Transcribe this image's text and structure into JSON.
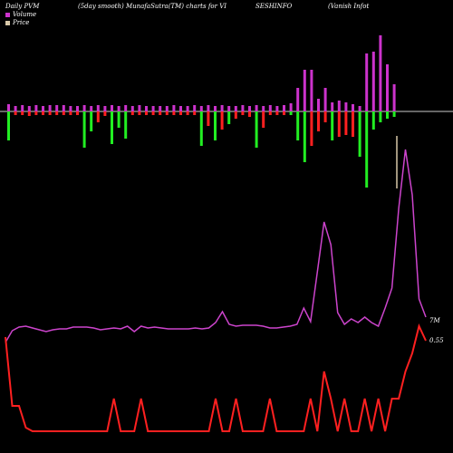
{
  "header": {
    "left": "Daily PVM",
    "center": "(5day smooth) MunafaSutra(TM) charts for VI",
    "symbol": "SESHINFO",
    "company": "(Vanish Infot"
  },
  "legend": [
    {
      "label": "Volume",
      "color": "#cc33cc"
    },
    {
      "label": "Price",
      "color": "#d8c8a8"
    }
  ],
  "right_labels": {
    "upper": "7M",
    "lower": "0.55"
  },
  "colors": {
    "up": "#cc33cc",
    "down": "#ff2020",
    "green": "#22ee22",
    "pvm": "#cc44cc",
    "price": "#ff2020",
    "baseline": "#cccccc"
  },
  "chart_data": {
    "type": "bar",
    "title": "Daily PVM",
    "volume_bars": [
      {
        "up": 8,
        "down": 32,
        "c": "g"
      },
      {
        "up": 6,
        "down": 4,
        "c": "r"
      },
      {
        "up": 7,
        "down": 4,
        "c": "r"
      },
      {
        "up": 6,
        "down": 5,
        "c": "r"
      },
      {
        "up": 7,
        "down": 4,
        "c": "r"
      },
      {
        "up": 6,
        "down": 4,
        "c": "r"
      },
      {
        "up": 7,
        "down": 4,
        "c": "r"
      },
      {
        "up": 7,
        "down": 4,
        "c": "r"
      },
      {
        "up": 7,
        "down": 4,
        "c": "r"
      },
      {
        "up": 6,
        "down": 4,
        "c": "r"
      },
      {
        "up": 6,
        "down": 4,
        "c": "r"
      },
      {
        "up": 7,
        "down": 40,
        "c": "g"
      },
      {
        "up": 6,
        "down": 22,
        "c": "g"
      },
      {
        "up": 7,
        "down": 12,
        "c": "r"
      },
      {
        "up": 6,
        "down": 5,
        "c": "r"
      },
      {
        "up": 7,
        "down": 36,
        "c": "g"
      },
      {
        "up": 6,
        "down": 18,
        "c": "g"
      },
      {
        "up": 7,
        "down": 30,
        "c": "g"
      },
      {
        "up": 6,
        "down": 4,
        "c": "r"
      },
      {
        "up": 7,
        "down": 4,
        "c": "r"
      },
      {
        "up": 6,
        "down": 4,
        "c": "r"
      },
      {
        "up": 6,
        "down": 4,
        "c": "r"
      },
      {
        "up": 6,
        "down": 4,
        "c": "r"
      },
      {
        "up": 6,
        "down": 4,
        "c": "r"
      },
      {
        "up": 7,
        "down": 4,
        "c": "r"
      },
      {
        "up": 6,
        "down": 4,
        "c": "r"
      },
      {
        "up": 6,
        "down": 4,
        "c": "r"
      },
      {
        "up": 7,
        "down": 4,
        "c": "r"
      },
      {
        "up": 6,
        "down": 38,
        "c": "g"
      },
      {
        "up": 7,
        "down": 16,
        "c": "r"
      },
      {
        "up": 6,
        "down": 32,
        "c": "g"
      },
      {
        "up": 7,
        "down": 20,
        "c": "r"
      },
      {
        "up": 6,
        "down": 14,
        "c": "g"
      },
      {
        "up": 6,
        "down": 8,
        "c": "r"
      },
      {
        "up": 7,
        "down": 4,
        "c": "r"
      },
      {
        "up": 6,
        "down": 6,
        "c": "r"
      },
      {
        "up": 7,
        "down": 40,
        "c": "g"
      },
      {
        "up": 6,
        "down": 18,
        "c": "r"
      },
      {
        "up": 7,
        "down": 4,
        "c": "r"
      },
      {
        "up": 6,
        "down": 4,
        "c": "r"
      },
      {
        "up": 7,
        "down": 4,
        "c": "r"
      },
      {
        "up": 9,
        "down": 4,
        "c": "g"
      },
      {
        "up": 26,
        "down": 32,
        "c": "g"
      },
      {
        "up": 46,
        "down": 56,
        "c": "g"
      },
      {
        "up": 46,
        "down": 38,
        "c": "r"
      },
      {
        "up": 14,
        "down": 22,
        "c": "r"
      },
      {
        "up": 26,
        "down": 12,
        "c": "r"
      },
      {
        "up": 10,
        "down": 32,
        "c": "g"
      },
      {
        "up": 12,
        "down": 28,
        "c": "r"
      },
      {
        "up": 10,
        "down": 26,
        "c": "r"
      },
      {
        "up": 8,
        "down": 28,
        "c": "r"
      },
      {
        "up": 6,
        "down": 50,
        "c": "g"
      },
      {
        "up": 64,
        "down": 84,
        "c": "g"
      },
      {
        "up": 66,
        "down": 20,
        "c": "g"
      },
      {
        "up": 84,
        "down": 12,
        "c": "g"
      },
      {
        "up": 52,
        "down": 8,
        "c": "g"
      },
      {
        "up": 30,
        "down": 6,
        "c": "g"
      }
    ],
    "pvm_line": [
      378,
      365,
      361,
      360,
      362,
      364,
      366,
      364,
      363,
      363,
      361,
      361,
      361,
      362,
      364,
      363,
      362,
      363,
      360,
      366,
      360,
      362,
      361,
      362,
      363,
      363,
      363,
      363,
      362,
      363,
      362,
      356,
      344,
      358,
      360,
      359,
      359,
      359,
      360,
      362,
      362,
      361,
      360,
      358,
      340,
      355,
      300,
      245,
      270,
      345,
      358,
      352,
      356,
      350,
      356,
      360,
      340,
      318,
      230,
      165,
      215,
      330,
      350
    ],
    "price_line": [
      372,
      448,
      448,
      472,
      476,
      476,
      476,
      476,
      476,
      476,
      476,
      476,
      476,
      476,
      476,
      476,
      440,
      476,
      476,
      476,
      440,
      476,
      476,
      476,
      476,
      476,
      476,
      476,
      476,
      476,
      476,
      440,
      476,
      476,
      440,
      476,
      476,
      476,
      476,
      440,
      476,
      476,
      476,
      476,
      476,
      440,
      476,
      410,
      440,
      476,
      440,
      476,
      476,
      440,
      476,
      440,
      476,
      440,
      440,
      410,
      390,
      360,
      376
    ]
  }
}
